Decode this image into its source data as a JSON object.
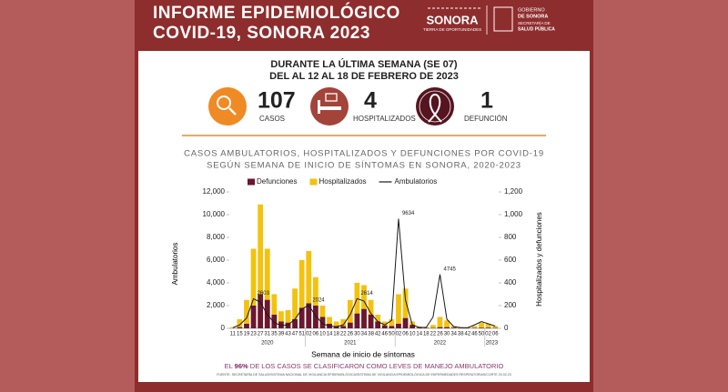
{
  "header": {
    "title_line1": "INFORME EPIDEMIOLÓGICO",
    "title_line2": "COVID-19, SONORA 2023"
  },
  "logos": {
    "brand": "SONORA",
    "slogan": "TIERRA DE OPORTUNIDADES",
    "gov_line1": "GOBIERNO",
    "gov_line2": "DE SONORA",
    "dept_line1": "SECRETARÍA DE",
    "dept_line2": "SALUD PÚBLICA"
  },
  "week": {
    "line1": "DURANTE LA ÚLTIMA SEMANA (SE 07)",
    "line2": "DEL AL 12 AL 18 DE FEBRERO DE 2023"
  },
  "stats": [
    {
      "value": 107,
      "label": "CASOS"
    },
    {
      "value": 4,
      "label": "HOSPITALIZADOS"
    },
    {
      "value": 1,
      "label": "DEFUNCIÓN"
    }
  ],
  "chart_data": {
    "type": "bar",
    "title_line1": "CASOS AMBULATORIOS, HOSPITALIZADOS Y DEFUNCIONES POR COVID-19",
    "title_line2": "SEGÚN SEMANA DE INICIO DE SÍNTOMAS EN SONORA, 2020-2023",
    "x_label": "Semana de inicio de síntomas",
    "y_label": "Ambulatorios",
    "y2_label": "Hospitalizados y defunciones",
    "legend": "top",
    "categories": [
      "11",
      "15",
      "19",
      "23",
      "27",
      "31",
      "35",
      "39",
      "43",
      "47",
      "51",
      "02",
      "06",
      "10",
      "14",
      "18",
      "22",
      "26",
      "30",
      "34",
      "38",
      "42",
      "46",
      "50",
      "02",
      "06",
      "10",
      "14",
      "18",
      "22",
      "26",
      "30",
      "34",
      "38",
      "42",
      "46",
      "50",
      "02",
      "06"
    ],
    "x_groups": [
      "2020",
      "2021",
      "2022",
      "2023"
    ],
    "series": [
      {
        "name": "Defunciones",
        "type": "bar",
        "axis": "y2",
        "color": "#6b1632",
        "values": [
          0,
          10,
          40,
          200,
          300,
          250,
          120,
          60,
          50,
          80,
          180,
          220,
          200,
          100,
          40,
          20,
          20,
          50,
          130,
          170,
          120,
          60,
          25,
          20,
          40,
          90,
          30,
          5,
          3,
          3,
          10,
          10,
          5,
          2,
          2,
          3,
          5,
          5,
          3
        ]
      },
      {
        "name": "Hospitalizados",
        "type": "bar",
        "axis": "y2",
        "color": "#f4c20d",
        "values": [
          10,
          80,
          250,
          700,
          1090,
          700,
          300,
          150,
          160,
          350,
          600,
          680,
          450,
          200,
          100,
          60,
          80,
          250,
          400,
          380,
          250,
          120,
          60,
          80,
          300,
          350,
          60,
          15,
          10,
          30,
          100,
          70,
          20,
          10,
          10,
          20,
          50,
          40,
          20
        ]
      },
      {
        "name": "Ambulatorios",
        "type": "line",
        "color": "#1a1a1a",
        "values": [
          50,
          300,
          900,
          2603,
          2300,
          1200,
          500,
          250,
          300,
          800,
          1700,
          2024,
          1100,
          400,
          200,
          150,
          300,
          1200,
          2614,
          2400,
          1300,
          600,
          300,
          700,
          9634,
          2500,
          300,
          80,
          80,
          1000,
          4745,
          800,
          150,
          60,
          50,
          300,
          600,
          400,
          200
        ],
        "value_labels": [
          null,
          null,
          null,
          "2603",
          null,
          null,
          null,
          null,
          null,
          null,
          null,
          "2024",
          null,
          null,
          null,
          null,
          null,
          null,
          "2614",
          null,
          null,
          null,
          null,
          null,
          "9634",
          null,
          null,
          null,
          null,
          null,
          "4745",
          null,
          null,
          null,
          null,
          null,
          null,
          null,
          null
        ]
      }
    ],
    "ylim": [
      0,
      12000
    ],
    "yticks": [
      0,
      {
        "value": 2000,
        "label": "2,000"
      },
      {
        "value": 4000,
        "label": "4,000"
      },
      {
        "value": 6000,
        "label": "6,000"
      },
      {
        "value": 8000,
        "label": "8,000"
      },
      {
        "value": 10000,
        "label": "10,000"
      },
      {
        "value": 12000,
        "label": "12,000"
      }
    ],
    "y2lim": [
      0,
      1200
    ],
    "y2ticks": [
      0,
      200,
      400,
      600,
      800,
      {
        "value": 1000,
        "label": "1,000"
      },
      {
        "value": 1200,
        "label": "1,200"
      }
    ]
  },
  "footer": {
    "before": "EL",
    "highlight": "96%",
    "after": "DE LOS CASOS SE CLASIFICARON COMO LEVES DE  MANEJO AMBULATORIO",
    "source": "FUENTE: SECRETARÍA DE SALUD/SISTEMA NACIONAL DE VIGILANCIA EPIDEMIOLÓGICA/SISTEMA DE VIGILANCIA EPIDEMIOLÓGICA DE ENFERMEDADES RESPIRATORIAS/CORTE 20.02.23"
  }
}
